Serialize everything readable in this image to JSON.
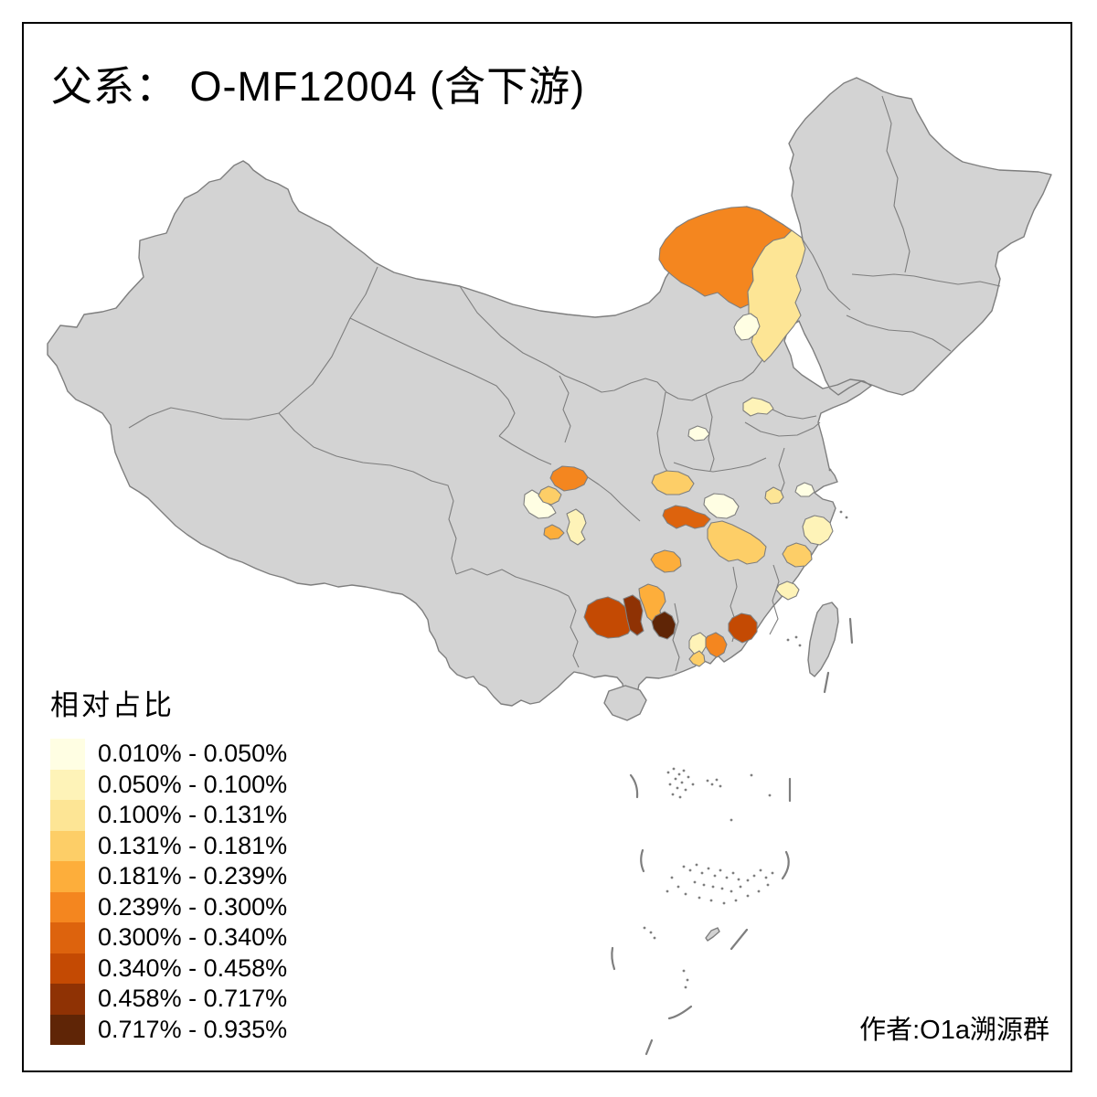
{
  "title": "父系： O-MF12004 (含下游)",
  "attribution": "作者:O1a溯源群",
  "legend": {
    "title": "相对占比",
    "entries": [
      {
        "label": "0.010% - 0.050%",
        "color": "#FFFEE3"
      },
      {
        "label": "0.050% - 0.100%",
        "color": "#FEF3B8"
      },
      {
        "label": "0.100% - 0.131%",
        "color": "#FDE595"
      },
      {
        "label": "0.131% - 0.181%",
        "color": "#FDCE67"
      },
      {
        "label": "0.181% - 0.239%",
        "color": "#FDAE3B"
      },
      {
        "label": "0.239% - 0.300%",
        "color": "#F4861F"
      },
      {
        "label": "0.300% - 0.340%",
        "color": "#DD630D"
      },
      {
        "label": "0.340% - 0.458%",
        "color": "#C44A03"
      },
      {
        "label": "0.458% - 0.717%",
        "color": "#8F3204"
      },
      {
        "label": "0.717% - 0.935%",
        "color": "#5F2506"
      }
    ]
  },
  "map": {
    "base_fill": "#D3D3D3",
    "border_color": "#7E7E7E",
    "background": "#FFFFFF",
    "regions": [
      {
        "id": "xilingol",
        "class": 6
      },
      {
        "id": "chifeng",
        "class": 3
      },
      {
        "id": "beijing",
        "class": 1
      },
      {
        "id": "west-shandong",
        "class": 2
      },
      {
        "id": "south-shanxi",
        "class": 1
      },
      {
        "id": "hanzhong",
        "class": 6
      },
      {
        "id": "deyang",
        "class": 4
      },
      {
        "id": "chengdu",
        "class": 1
      },
      {
        "id": "zigong",
        "class": 5
      },
      {
        "id": "neijiang-luzhou",
        "class": 2
      },
      {
        "id": "xiangyang",
        "class": 4
      },
      {
        "id": "jingzhou-yichang",
        "class": 7
      },
      {
        "id": "wuhan",
        "class": 1
      },
      {
        "id": "yueyang-north-hunan",
        "class": 4
      },
      {
        "id": "anqing",
        "class": 3
      },
      {
        "id": "nanjing",
        "class": 1
      },
      {
        "id": "hangzhou",
        "class": 2
      },
      {
        "id": "jinhua",
        "class": 4
      },
      {
        "id": "north-fujian",
        "class": 2
      },
      {
        "id": "central-hunan",
        "class": 5
      },
      {
        "id": "southeast-guizhou",
        "class": 8
      },
      {
        "id": "huaihua",
        "class": 9
      },
      {
        "id": "northwest-hunan",
        "class": 5
      },
      {
        "id": "southwest-hunan",
        "class": 10
      },
      {
        "id": "north-guangdong",
        "class": 8
      },
      {
        "id": "wuzhou",
        "class": 2
      },
      {
        "id": "zhaoqing",
        "class": 6
      },
      {
        "id": "jiangmen",
        "class": 4
      }
    ]
  }
}
